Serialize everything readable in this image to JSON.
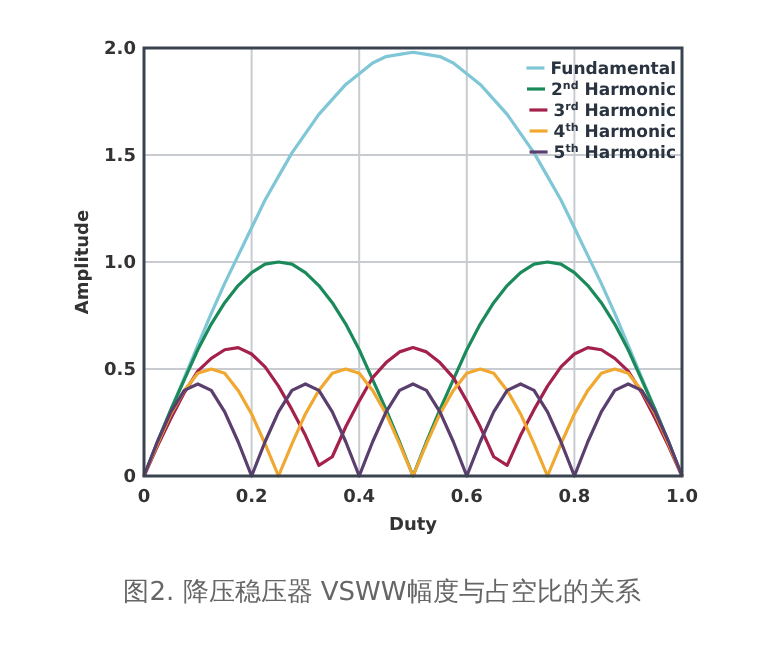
{
  "chart_data": {
    "type": "line",
    "xlabel": "Duty",
    "ylabel": "Amplitude",
    "xlim": [
      0,
      1
    ],
    "ylim": [
      0,
      2
    ],
    "xticks": [
      0,
      0.2,
      0.4,
      0.6,
      0.8,
      {
        "value": 1,
        "label": "1.0"
      }
    ],
    "yticks": [
      0,
      0.5,
      {
        "value": 1,
        "label": "1.0"
      },
      1.5,
      {
        "value": 2,
        "label": "2.0"
      }
    ],
    "grid": true,
    "legend": "top right",
    "x": [
      0,
      0.025,
      0.05,
      0.075,
      0.1,
      0.125,
      0.15,
      0.175,
      0.2,
      0.225,
      0.25,
      0.275,
      0.3,
      0.325,
      0.35,
      0.375,
      0.4,
      0.425,
      0.45,
      0.475,
      0.5,
      0.525,
      0.55,
      0.575,
      0.6,
      0.625,
      0.65,
      0.675,
      0.7,
      0.725,
      0.75,
      0.775,
      0.8,
      0.825,
      0.85,
      0.875,
      0.9,
      0.925,
      0.95,
      0.975,
      1
    ],
    "series": [
      {
        "name": "Fundamental",
        "color": "#7fc6d6",
        "values": [
          0,
          0.16,
          0.31,
          0.46,
          0.61,
          0.76,
          0.9,
          1.03,
          1.16,
          1.29,
          1.4,
          1.51,
          1.6,
          1.69,
          1.76,
          1.83,
          1.88,
          1.93,
          1.96,
          1.97,
          1.98,
          1.97,
          1.96,
          1.93,
          1.88,
          1.83,
          1.76,
          1.69,
          1.6,
          1.51,
          1.4,
          1.29,
          1.16,
          1.03,
          0.9,
          0.76,
          0.61,
          0.46,
          0.31,
          0.16,
          0
        ]
      },
      {
        "name": "2$^{nd}$ Harmonic",
        "color": "#1a8a5a",
        "values": [
          0,
          0.16,
          0.31,
          0.45,
          0.59,
          0.71,
          0.81,
          0.89,
          0.95,
          0.99,
          1.0,
          0.99,
          0.95,
          0.89,
          0.81,
          0.71,
          0.59,
          0.45,
          0.31,
          0.16,
          0,
          0.16,
          0.31,
          0.45,
          0.59,
          0.71,
          0.81,
          0.89,
          0.95,
          0.99,
          1.0,
          0.99,
          0.95,
          0.89,
          0.81,
          0.71,
          0.59,
          0.45,
          0.31,
          0.16,
          0
        ]
      },
      {
        "name": "3$^{rd}$ Harmonic",
        "color": "#a3214a",
        "values": [
          0,
          0.14,
          0.27,
          0.39,
          0.49,
          0.55,
          0.59,
          0.6,
          0.57,
          0.51,
          0.42,
          0.31,
          0.19,
          0.05,
          0.09,
          0.23,
          0.35,
          0.46,
          0.53,
          0.58,
          0.6,
          0.58,
          0.53,
          0.46,
          0.35,
          0.23,
          0.09,
          0.05,
          0.19,
          0.31,
          0.42,
          0.51,
          0.57,
          0.6,
          0.59,
          0.55,
          0.49,
          0.39,
          0.27,
          0.14,
          0
        ]
      },
      {
        "name": "4$^{th}$ Harmonic",
        "color": "#f0a830",
        "values": [
          0,
          0.15,
          0.29,
          0.4,
          0.48,
          0.5,
          0.48,
          0.4,
          0.29,
          0.15,
          0,
          0.15,
          0.29,
          0.4,
          0.48,
          0.5,
          0.48,
          0.4,
          0.29,
          0.15,
          0,
          0.15,
          0.29,
          0.4,
          0.48,
          0.5,
          0.48,
          0.4,
          0.29,
          0.15,
          0,
          0.15,
          0.29,
          0.4,
          0.48,
          0.5,
          0.48,
          0.4,
          0.29,
          0.15,
          0
        ]
      },
      {
        "name": "5$^{th}$ Harmonic",
        "color": "#5a3e6e",
        "values": [
          0,
          0.16,
          0.3,
          0.4,
          0.43,
          0.4,
          0.3,
          0.16,
          0,
          0.16,
          0.3,
          0.4,
          0.43,
          0.4,
          0.3,
          0.16,
          0,
          0.16,
          0.3,
          0.4,
          0.43,
          0.4,
          0.3,
          0.16,
          0,
          0.16,
          0.3,
          0.4,
          0.43,
          0.4,
          0.3,
          0.16,
          0,
          0.16,
          0.3,
          0.4,
          0.43,
          0.4,
          0.3,
          0.16,
          0
        ]
      }
    ],
    "annotations": [
      "图2. 降压稳压器 VSWW幅度与占空比的关系"
    ]
  }
}
